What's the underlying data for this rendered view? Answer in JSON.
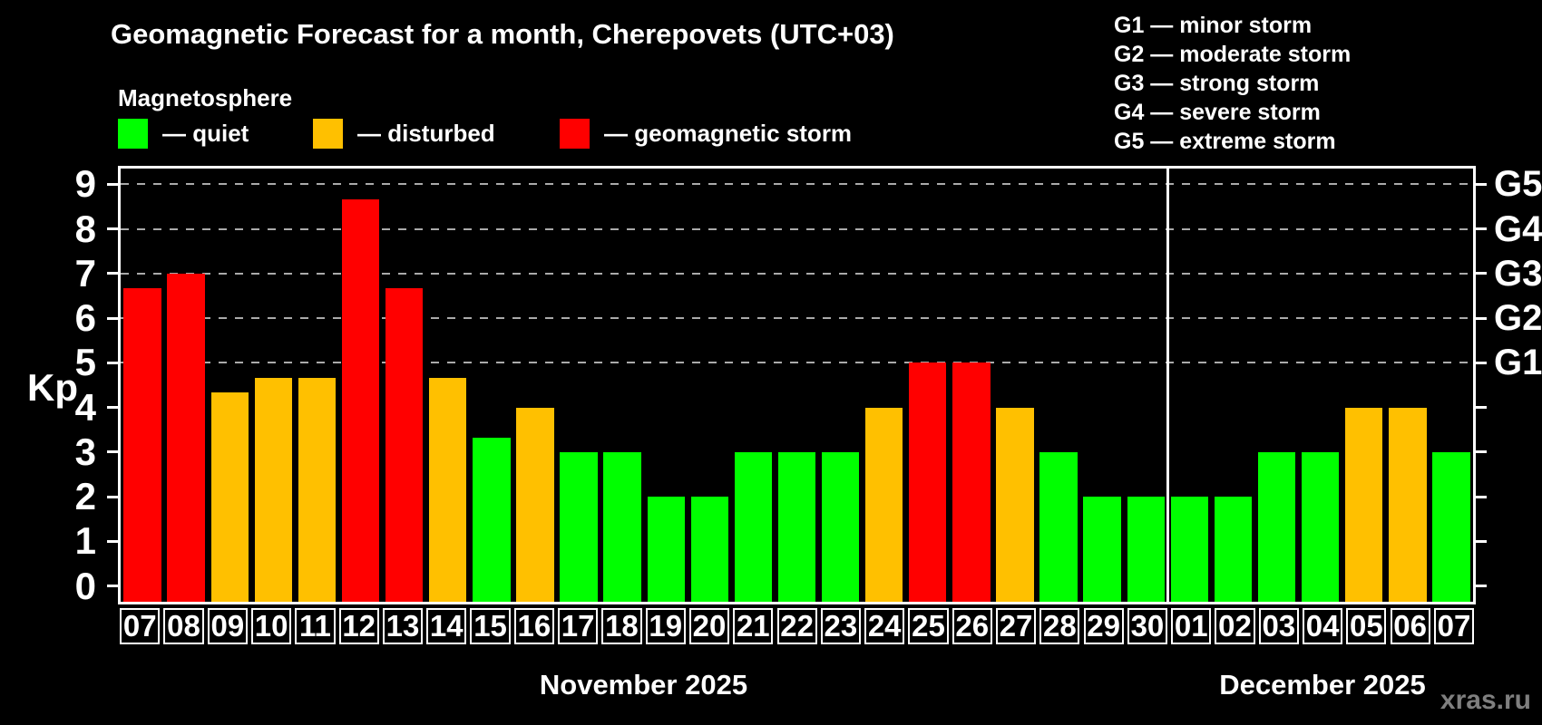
{
  "header": {
    "title": "Geomagnetic Forecast for a month, Cherepovets (UTC+03)",
    "subtitle": "Magnetosphere"
  },
  "legend": {
    "items": [
      {
        "key": "quiet",
        "label": "— quiet",
        "color": "#00ff00"
      },
      {
        "key": "disturbed",
        "label": "— disturbed",
        "color": "#ffc000"
      },
      {
        "key": "storm",
        "label": "— geomagnetic storm",
        "color": "#ff0000"
      }
    ]
  },
  "storm_scale_legend": {
    "lines": [
      "G1 — minor storm",
      "G2 — moderate storm",
      "G3 — strong storm",
      "G4 — severe storm",
      "G5 — extreme storm"
    ]
  },
  "watermark": "xras.ru",
  "chart_data": {
    "type": "bar",
    "title": "Geomagnetic Forecast for a month, Cherepovets (UTC+03)",
    "xlabel": "",
    "ylabel": "Kp",
    "ylim": [
      -0.35,
      9.35
    ],
    "y_ticks": [
      0,
      1,
      2,
      3,
      4,
      5,
      6,
      7,
      8,
      9
    ],
    "gridlines_kp": [
      5,
      6,
      7,
      8,
      9
    ],
    "grid_style": "dashed horizontal lines at storm levels G1–G5 only",
    "legend_position": "top-left",
    "right_axis_labels": [
      {
        "kp": 9,
        "label": "G5"
      },
      {
        "kp": 8,
        "label": "G4"
      },
      {
        "kp": 7,
        "label": "G3"
      },
      {
        "kp": 6,
        "label": "G2"
      },
      {
        "kp": 5,
        "label": "G1"
      }
    ],
    "categories": [
      "07",
      "08",
      "09",
      "10",
      "11",
      "12",
      "13",
      "14",
      "15",
      "16",
      "17",
      "18",
      "19",
      "20",
      "21",
      "22",
      "23",
      "24",
      "25",
      "26",
      "27",
      "28",
      "29",
      "30",
      "01",
      "02",
      "03",
      "04",
      "05",
      "06",
      "07"
    ],
    "values": [
      6.67,
      7.0,
      4.33,
      4.67,
      4.67,
      8.67,
      6.67,
      4.67,
      3.33,
      4.0,
      3.0,
      3.0,
      2.0,
      2.0,
      3.0,
      3.0,
      3.0,
      4.0,
      5.0,
      5.0,
      4.0,
      3.0,
      2.0,
      2.0,
      2.0,
      2.0,
      3.0,
      3.0,
      4.0,
      4.0,
      3.0
    ],
    "statuses": [
      "storm",
      "storm",
      "disturbed",
      "disturbed",
      "disturbed",
      "storm",
      "storm",
      "disturbed",
      "quiet",
      "disturbed",
      "quiet",
      "quiet",
      "quiet",
      "quiet",
      "quiet",
      "quiet",
      "quiet",
      "disturbed",
      "storm",
      "storm",
      "disturbed",
      "quiet",
      "quiet",
      "quiet",
      "quiet",
      "quiet",
      "quiet",
      "quiet",
      "disturbed",
      "disturbed",
      "quiet"
    ],
    "status_colors": {
      "quiet": "#00ff00",
      "disturbed": "#ffc000",
      "storm": "#ff0000"
    },
    "months": [
      {
        "label": "November 2025",
        "start_index": 0,
        "days": 24
      },
      {
        "label": "December 2025",
        "start_index": 24,
        "days": 7
      }
    ],
    "divider_after_index": 23
  }
}
